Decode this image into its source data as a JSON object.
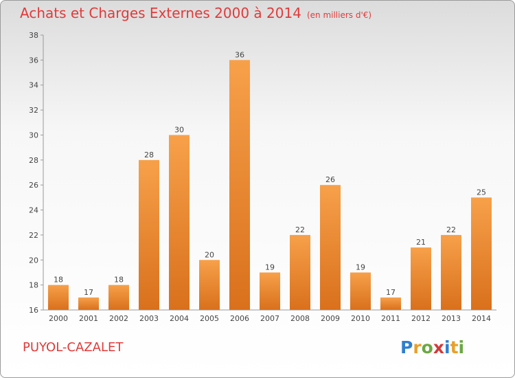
{
  "header": {
    "title": "Achats et Charges Externes 2000 à 2014",
    "subtitle": "(en milliers d'€)"
  },
  "footer": {
    "commune": "PUYOL-CAZALET",
    "logo_letters": [
      "P",
      "r",
      "o",
      "x",
      "i",
      "t",
      "i"
    ],
    "logo_colors": [
      "#2f7fcf",
      "#e8a02a",
      "#6aa840",
      "#d23a3a",
      "#2f7fcf",
      "#e8a02a",
      "#6aa840"
    ]
  },
  "chart_data": {
    "type": "bar",
    "categories": [
      "2000",
      "2001",
      "2002",
      "2003",
      "2004",
      "2005",
      "2006",
      "2007",
      "2008",
      "2009",
      "2010",
      "2011",
      "2012",
      "2013",
      "2014"
    ],
    "values": [
      18,
      17,
      18,
      28,
      30,
      20,
      36,
      19,
      22,
      26,
      19,
      17,
      21,
      22,
      25
    ],
    "data_labels": [
      "18",
      "17",
      "18",
      "28",
      "30",
      "20",
      "36",
      "19",
      "22",
      "26",
      "19",
      "17",
      "21",
      "22",
      "25"
    ],
    "ylim": [
      16,
      38
    ],
    "yticks": [
      16,
      18,
      20,
      22,
      24,
      26,
      28,
      30,
      32,
      34,
      36,
      38
    ],
    "grid": false,
    "bar_color": "#f0902e",
    "title": "Achats et Charges Externes 2000 à 2014",
    "subtitle": "(en milliers d'€)"
  }
}
